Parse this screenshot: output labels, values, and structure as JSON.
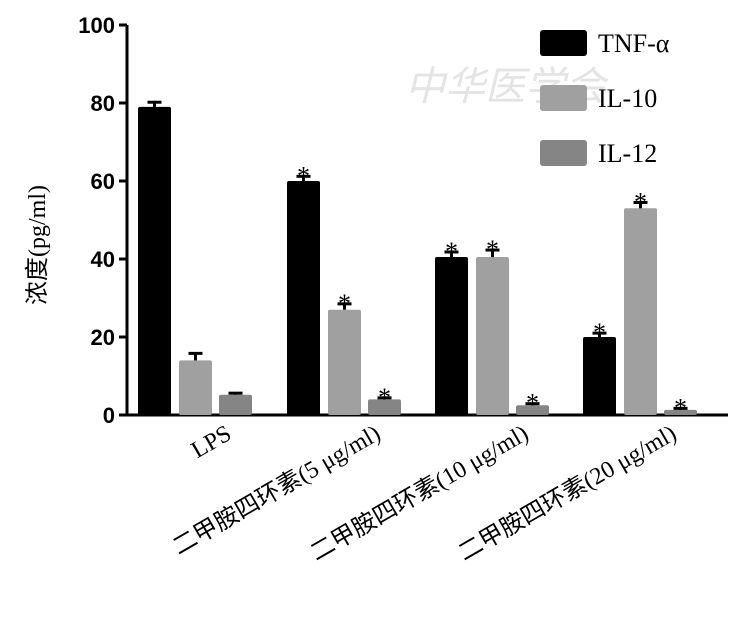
{
  "chart_data": {
    "type": "bar",
    "title": "",
    "xlabel": "",
    "ylabel": "浓度(pg/ml)",
    "ylim": [
      0,
      100
    ],
    "yticks": [
      "0",
      "20",
      "40",
      "60",
      "80",
      "100"
    ],
    "categories": [
      "LPS",
      "二甲胺四环素(5 μg/ml)",
      "二甲胺四环素(10 μg/ml)",
      "二甲胺四环素(20 μg/ml)"
    ],
    "series": [
      {
        "name": "TNF-α",
        "color": "#000000",
        "values": [
          79,
          60,
          40.5,
          20
        ],
        "errors": [
          1.2,
          1.2,
          1.3,
          1.0
        ],
        "significant": [
          false,
          true,
          true,
          true
        ]
      },
      {
        "name": "IL-10",
        "color": "#a0a0a0",
        "values": [
          14,
          27,
          40.5,
          53
        ],
        "errors": [
          1.8,
          1.5,
          1.8,
          1.5
        ],
        "significant": [
          false,
          true,
          true,
          true
        ]
      },
      {
        "name": "IL-12",
        "color": "#858585",
        "values": [
          5.2,
          4,
          2.5,
          1.3
        ],
        "errors": [
          0.4,
          0.4,
          0.4,
          0.4
        ],
        "significant": [
          false,
          true,
          true,
          true
        ]
      }
    ],
    "significance_marker": "*",
    "legend_position": "top-right",
    "grid": false
  },
  "watermark": "中华医学会"
}
